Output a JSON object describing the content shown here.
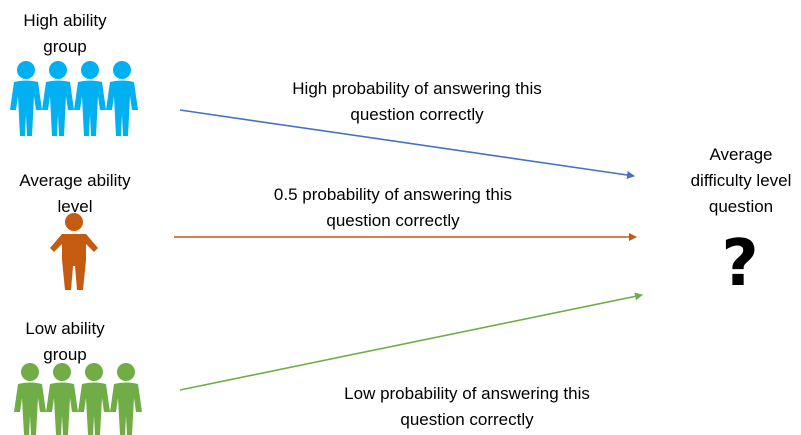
{
  "groups": {
    "high": {
      "label": "High ability\ngroup",
      "color": "#00b0f0"
    },
    "average": {
      "label": "Average ability\nlevel",
      "color": "#c55a11"
    },
    "low": {
      "label": "Low ability\ngroup",
      "color": "#70ad47"
    }
  },
  "arrows": {
    "high": {
      "label": "High probability of answering this\nquestion correctly",
      "color": "#4472c4"
    },
    "average": {
      "label": "0.5 probability of answering this\nquestion correctly",
      "color": "#c55a11"
    },
    "low": {
      "label": "Low probability of answering this\nquestion correctly",
      "color": "#70ad47"
    }
  },
  "question": {
    "label": "Average\ndifficulty level\nquestion",
    "symbol": "?"
  }
}
